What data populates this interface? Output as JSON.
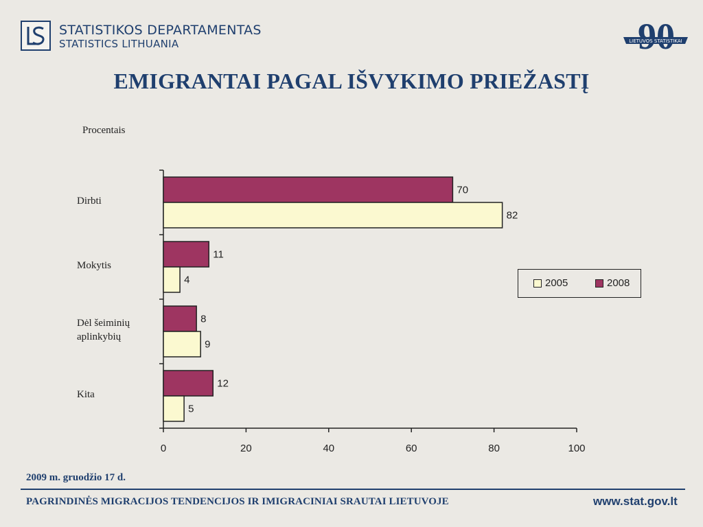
{
  "header": {
    "org_line1": "STATISTIKOS DEPARTAMENTAS",
    "org_line2": "STATISTICS LITHUANIA",
    "anniversary_number": "90",
    "anniversary_text": "LIETUVOS STATISTIKAI"
  },
  "title": "EMIGRANTAI PAGAL IŠVYKIMO PRIEŽASTĮ",
  "footer": {
    "date": "2009 m. gruodžio 17 d.",
    "text": "PAGRINDINĖS MIGRACIJOS TENDENCIJOS IR IMIGRACINIAI SRAUTAI LIETUVOJE",
    "url": "www.stat.gov.lt"
  },
  "colors": {
    "title": "#1f3f6e",
    "series_2005": "#fbf9d0",
    "series_2008": "#9e3561"
  },
  "chart_data": {
    "type": "bar",
    "orientation": "horizontal",
    "title": "",
    "ylabel": "Procentais",
    "categories": [
      "Dirbti",
      "Mokytis",
      "Dėl šeiminių aplinkybių",
      "Kita"
    ],
    "category_label_lines": [
      [
        "Dirbti"
      ],
      [
        "Mokytis"
      ],
      [
        "Dėl šeiminių",
        "aplinkybių"
      ],
      [
        "Kita"
      ]
    ],
    "series": [
      {
        "name": "2008",
        "values": [
          70,
          11,
          8,
          12
        ]
      },
      {
        "name": "2005",
        "values": [
          82,
          4,
          9,
          5
        ]
      }
    ],
    "xlim": [
      0,
      100
    ],
    "xticks": [
      "0",
      "20",
      "40",
      "60",
      "80",
      "100"
    ],
    "legend": {
      "placement": "right",
      "order": [
        "2005",
        "2008"
      ]
    },
    "grid": false
  }
}
